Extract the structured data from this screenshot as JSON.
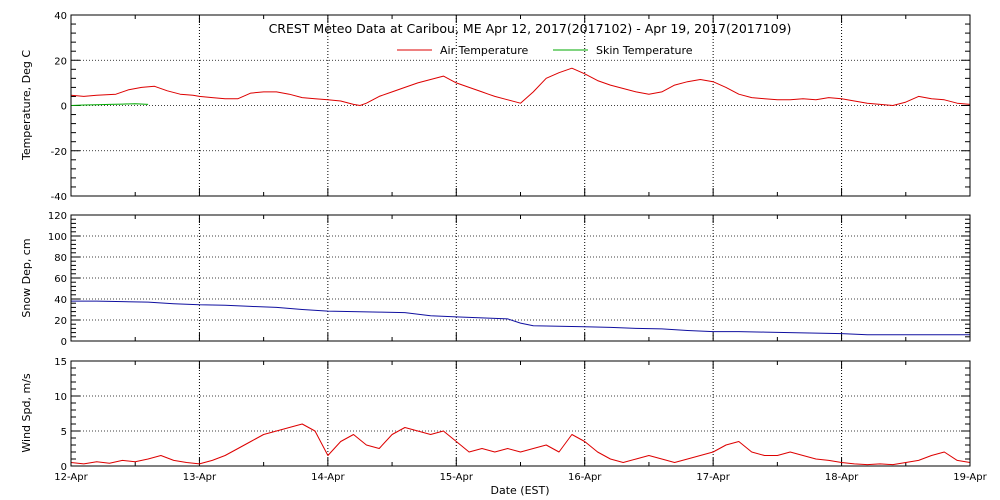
{
  "chart_data": [
    {
      "type": "line",
      "title": "CREST Meteo Data at Caribou, ME   Apr 12, 2017(2017102) - Apr 19, 2017(2017109)",
      "ylabel": "Temperature, Deg C",
      "ylim": [
        -40,
        40
      ],
      "yticks": [
        -40,
        -20,
        0,
        20,
        40
      ],
      "xlim": [
        0,
        7
      ],
      "grid": true,
      "legend_placement": "top-center",
      "series": [
        {
          "name": "Air Temperature",
          "color": "#dd0000",
          "x": [
            0,
            0.1,
            0.2,
            0.35,
            0.45,
            0.55,
            0.65,
            0.75,
            0.85,
            0.95,
            1.0,
            1.1,
            1.2,
            1.3,
            1.4,
            1.5,
            1.6,
            1.7,
            1.8,
            1.9,
            2.0,
            2.1,
            2.2,
            2.25,
            2.3,
            2.4,
            2.5,
            2.6,
            2.7,
            2.8,
            2.9,
            3.0,
            3.1,
            3.2,
            3.25,
            3.3,
            3.4,
            3.5,
            3.6,
            3.7,
            3.8,
            3.9,
            4.0,
            4.1,
            4.2,
            4.3,
            4.4,
            4.5,
            4.6,
            4.7,
            4.8,
            4.9,
            5.0,
            5.1,
            5.2,
            5.3,
            5.4,
            5.5,
            5.6,
            5.7,
            5.8,
            5.9,
            6.0,
            6.1,
            6.2,
            6.3,
            6.4,
            6.5,
            6.6,
            6.7,
            6.8,
            6.9,
            7.0
          ],
          "y": [
            4.5,
            4,
            4.5,
            5,
            7,
            8,
            8.5,
            6.5,
            5,
            4.5,
            4,
            3.5,
            3,
            3,
            5.5,
            6,
            6,
            5,
            3.5,
            3,
            2.5,
            2,
            0.5,
            0,
            1,
            4,
            6,
            8,
            10,
            11.5,
            13,
            10,
            8,
            6,
            5,
            4,
            2.5,
            1,
            6,
            12,
            14.5,
            16.5,
            14,
            11,
            9,
            7.5,
            6,
            5,
            6,
            9,
            10.5,
            11.5,
            10.5,
            8,
            5,
            3.5,
            3,
            2.5,
            2.5,
            3,
            2.5,
            3.5,
            3,
            2,
            1,
            0.5,
            0,
            1.5,
            4,
            3,
            2.5,
            1,
            0.5
          ]
        },
        {
          "name": "Skin Temperature",
          "color": "#00aa00",
          "x": [
            0,
            0.1,
            0.2,
            0.3,
            0.4,
            0.5,
            0.6
          ],
          "y": [
            0,
            0.2,
            0.3,
            0.5,
            0.6,
            0.8,
            0.5
          ]
        }
      ]
    },
    {
      "type": "line",
      "ylabel": "Snow Dep, cm",
      "ylim": [
        0,
        120
      ],
      "yticks": [
        0,
        20,
        40,
        60,
        80,
        100,
        120
      ],
      "xlim": [
        0,
        7
      ],
      "grid": true,
      "series": [
        {
          "color": "#1010a0",
          "x": [
            0,
            0.2,
            0.4,
            0.6,
            0.8,
            1.0,
            1.2,
            1.4,
            1.6,
            1.8,
            2.0,
            2.2,
            2.4,
            2.6,
            2.8,
            3.0,
            3.2,
            3.4,
            3.5,
            3.6,
            3.8,
            4.0,
            4.2,
            4.4,
            4.6,
            4.8,
            5.0,
            5.2,
            5.4,
            5.6,
            5.8,
            6.0,
            6.2,
            6.4,
            6.6,
            6.8,
            7.0
          ],
          "y": [
            38,
            38,
            37.5,
            37,
            35.5,
            34.5,
            34,
            33,
            32,
            30,
            28.5,
            28,
            27.5,
            27,
            24,
            23,
            22,
            21,
            17,
            14.5,
            14,
            13.5,
            13,
            12,
            11.5,
            10,
            9,
            9,
            8.5,
            8,
            7.5,
            7,
            6,
            6,
            6,
            6,
            6
          ]
        }
      ]
    },
    {
      "type": "line",
      "ylabel": "Wind Spd, m/s",
      "xlabel": "Date (EST)",
      "ylim": [
        0,
        15
      ],
      "yticks": [
        0,
        5,
        10,
        15
      ],
      "xlim": [
        0,
        7
      ],
      "x_tick_labels": [
        "12-Apr",
        "13-Apr",
        "14-Apr",
        "15-Apr",
        "16-Apr",
        "17-Apr",
        "18-Apr",
        "19-Apr"
      ],
      "grid": true,
      "series": [
        {
          "color": "#dd0000",
          "x": [
            0,
            0.1,
            0.2,
            0.3,
            0.4,
            0.5,
            0.6,
            0.7,
            0.8,
            0.9,
            1.0,
            1.1,
            1.2,
            1.3,
            1.4,
            1.5,
            1.6,
            1.7,
            1.8,
            1.9,
            2.0,
            2.1,
            2.2,
            2.3,
            2.4,
            2.5,
            2.6,
            2.7,
            2.8,
            2.9,
            3.0,
            3.1,
            3.2,
            3.3,
            3.4,
            3.5,
            3.6,
            3.7,
            3.8,
            3.9,
            4.0,
            4.1,
            4.2,
            4.3,
            4.4,
            4.5,
            4.6,
            4.7,
            4.8,
            4.9,
            5.0,
            5.1,
            5.2,
            5.3,
            5.4,
            5.5,
            5.6,
            5.7,
            5.8,
            5.9,
            6.0,
            6.1,
            6.2,
            6.3,
            6.4,
            6.5,
            6.6,
            6.7,
            6.8,
            6.9,
            7.0
          ],
          "y": [
            0.5,
            0.3,
            0.6,
            0.4,
            0.8,
            0.6,
            1.0,
            1.5,
            0.8,
            0.5,
            0.3,
            0.8,
            1.5,
            2.5,
            3.5,
            4.5,
            5.0,
            5.5,
            6.0,
            5.0,
            1.5,
            3.5,
            4.5,
            3.0,
            2.5,
            4.5,
            5.5,
            5.0,
            4.5,
            5.0,
            3.5,
            2.0,
            2.5,
            2.0,
            2.5,
            2.0,
            2.5,
            3.0,
            2.0,
            4.5,
            3.5,
            2.0,
            1.0,
            0.5,
            1.0,
            1.5,
            1.0,
            0.5,
            1.0,
            1.5,
            2.0,
            3.0,
            3.5,
            2.0,
            1.5,
            1.5,
            2.0,
            1.5,
            1.0,
            0.8,
            0.5,
            0.3,
            0.2,
            0.3,
            0.2,
            0.5,
            0.8,
            1.5,
            2.0,
            0.8,
            0.5
          ]
        }
      ]
    }
  ]
}
